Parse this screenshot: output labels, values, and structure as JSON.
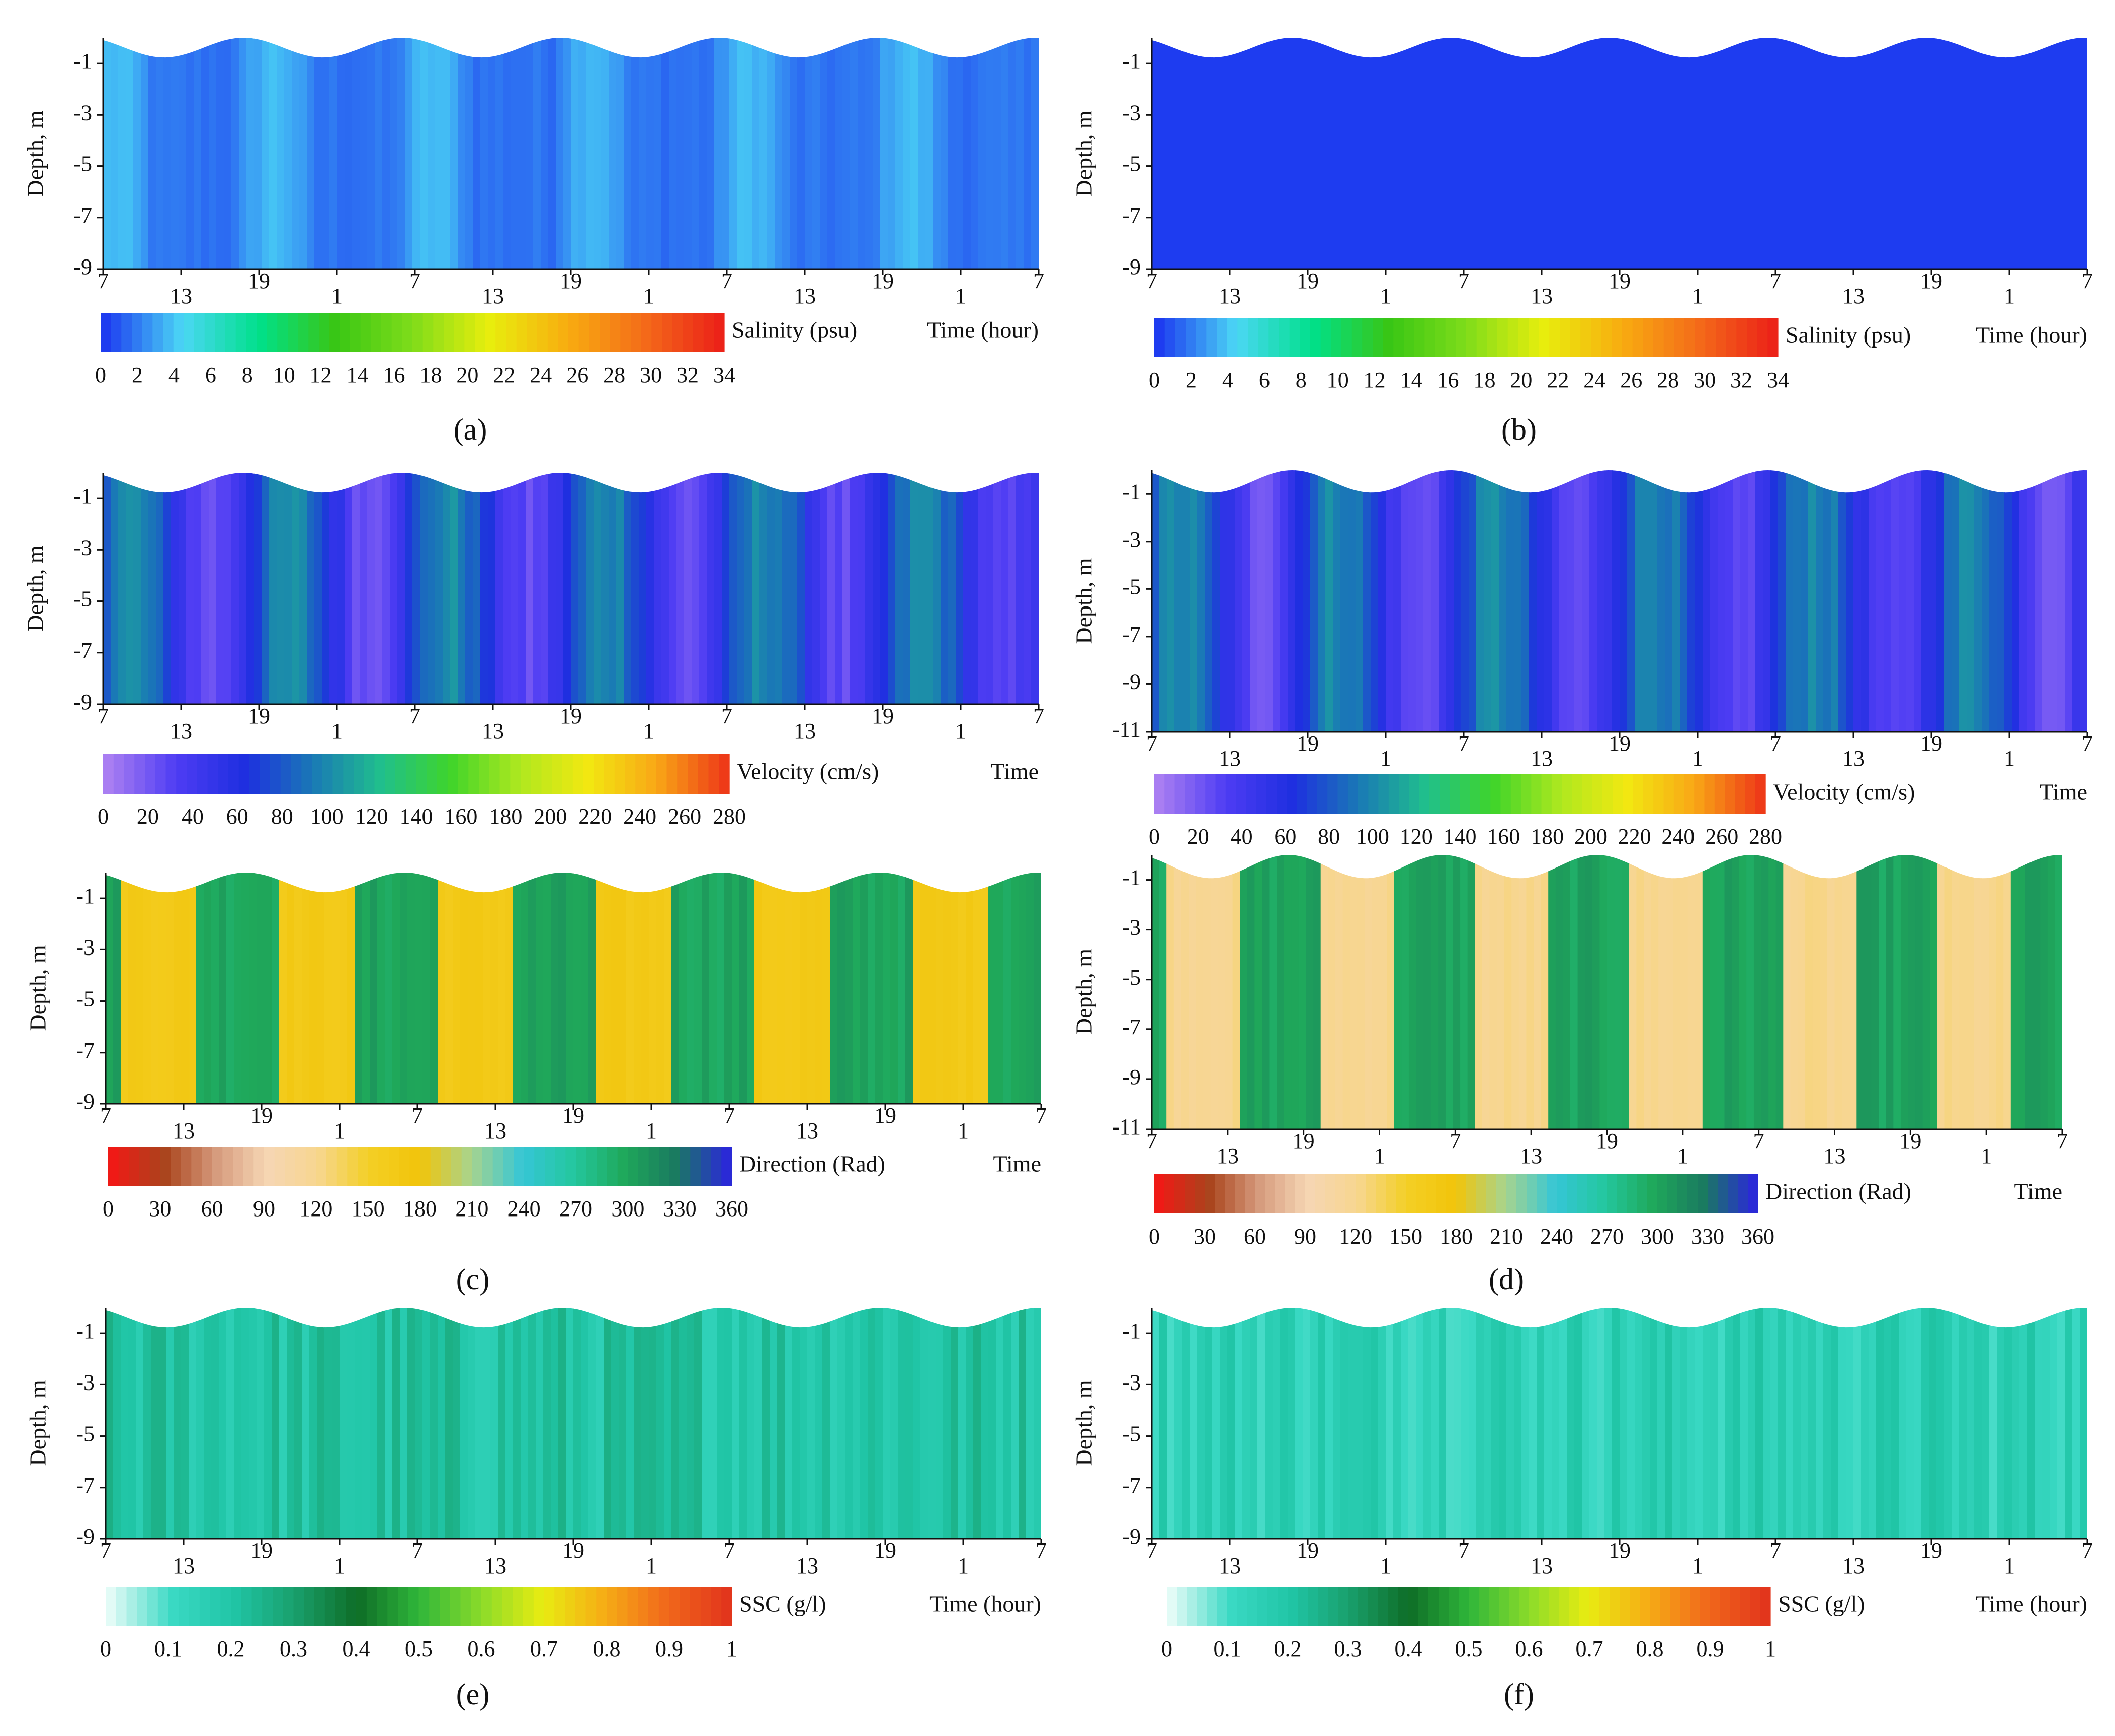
{
  "figure": {
    "depth_label": "Depth, m",
    "time_ticks": [
      "7",
      "13",
      "19",
      "1",
      "7",
      "13",
      "19",
      "1",
      "7",
      "13",
      "19",
      "1",
      "7"
    ]
  },
  "colorbars": {
    "salinity": {
      "label": "Salinity (psu)",
      "ticks": [
        "0",
        "2",
        "4",
        "6",
        "8",
        "10",
        "12",
        "14",
        "16",
        "18",
        "20",
        "22",
        "24",
        "26",
        "28",
        "30",
        "32",
        "34"
      ],
      "stops": [
        "#1e3cf0",
        "#4bd7f5",
        "#00e08a",
        "#39c614",
        "#7fdc1a",
        "#e8ee0d",
        "#f8ae10",
        "#f46d19",
        "#ec2318"
      ]
    },
    "velocity": {
      "label": "Velocity (cm/s)",
      "ticks": [
        "0",
        "20",
        "40",
        "60",
        "80",
        "100",
        "120",
        "140",
        "160",
        "180",
        "200",
        "220",
        "240",
        "260",
        "280"
      ],
      "stops": [
        "#a97ef2",
        "#4d3cf3",
        "#1e2fe0",
        "#1a7ab5",
        "#20c08c",
        "#3fd42a",
        "#aee81f",
        "#f2e811",
        "#f9a816",
        "#ee3b18"
      ]
    },
    "direction": {
      "label": "Direction (Rad)",
      "ticks": [
        "0",
        "30",
        "60",
        "90",
        "120",
        "150",
        "180",
        "210",
        "240",
        "270",
        "300",
        "330",
        "360"
      ],
      "stops": [
        "#ef1a16",
        "#a9441c",
        "#d59a7c",
        "#f6d6b4",
        "#f7d68f",
        "#f3cf25",
        "#f2c40a",
        "#a8d48e",
        "#35c6d6",
        "#24c79f",
        "#1fa85a",
        "#1a7a60",
        "#2a2ad6"
      ]
    },
    "ssc": {
      "label": "SSC (g/l)",
      "ticks": [
        "0",
        "0.1",
        "0.2",
        "0.3",
        "0.4",
        "0.5",
        "0.6",
        "0.7",
        "0.8",
        "0.9",
        "1"
      ],
      "stops": [
        "#e2fbf6",
        "#3ad9c4",
        "#20c5a6",
        "#199f6b",
        "#0e6d27",
        "#2fb63a",
        "#89db2a",
        "#e8ec12",
        "#f6ad15",
        "#f16a1b",
        "#e2361c"
      ]
    }
  },
  "chart_data": [
    {
      "panel": "a",
      "caption": "(a)",
      "type": "heatmap",
      "variable": "salinity",
      "colorbar_label": "Salinity (psu)",
      "xlabel": "Time (hour)",
      "ylabel": "Depth, m",
      "yticks": [
        "-1",
        "-3",
        "-5",
        "-7",
        "-9"
      ],
      "ylim": [
        -9,
        0
      ],
      "xticks": [
        "7",
        "13",
        "19",
        "1",
        "7",
        "13",
        "19",
        "1",
        "7",
        "13",
        "19",
        "1",
        "7"
      ],
      "value_range": [
        0,
        34
      ],
      "typical_value": 1.5
    },
    {
      "panel": "b",
      "caption": "(b)",
      "type": "heatmap",
      "variable": "salinity",
      "colorbar_label": "Salinity (psu)",
      "xlabel": "Time (hour)",
      "ylabel": "Depth, m",
      "yticks": [
        "-1",
        "-3",
        "-5",
        "-7",
        "-9"
      ],
      "ylim": [
        -9,
        0
      ],
      "xticks": [
        "7",
        "13",
        "19",
        "1",
        "7",
        "13",
        "19",
        "1",
        "7",
        "13",
        "19",
        "1",
        "7"
      ],
      "value_range": [
        0,
        34
      ],
      "typical_value": 0
    },
    {
      "panel": "c-velocity",
      "caption": "",
      "type": "heatmap",
      "variable": "velocity",
      "colorbar_label": "Velocity (cm/s)",
      "xlabel": "Time",
      "ylabel": "Depth, m",
      "yticks": [
        "-1",
        "-3",
        "-5",
        "-7",
        "-9"
      ],
      "ylim": [
        -9,
        0
      ],
      "xticks": [
        "7",
        "13",
        "19",
        "1",
        "7",
        "13",
        "19",
        "1",
        "7",
        "13",
        "19",
        "1",
        "7"
      ],
      "value_range": [
        0,
        280
      ],
      "typical_value": 60
    },
    {
      "panel": "d-velocity",
      "caption": "",
      "type": "heatmap",
      "variable": "velocity",
      "colorbar_label": "Velocity (cm/s)",
      "xlabel": "Time",
      "ylabel": "Depth, m",
      "yticks": [
        "-1",
        "-3",
        "-5",
        "-7",
        "-9",
        "-11"
      ],
      "ylim": [
        -11,
        0
      ],
      "xticks": [
        "7",
        "13",
        "19",
        "1",
        "7",
        "13",
        "19",
        "1",
        "7",
        "13",
        "19",
        "1",
        "7"
      ],
      "value_range": [
        0,
        280
      ],
      "typical_value": 60
    },
    {
      "panel": "c",
      "caption": "(c)",
      "type": "heatmap",
      "variable": "direction",
      "colorbar_label": "Direction (Rad)",
      "xlabel": "Time",
      "ylabel": "Depth, m",
      "yticks": [
        "-1",
        "-3",
        "-5",
        "-7",
        "-9"
      ],
      "ylim": [
        -9,
        0
      ],
      "xticks": [
        "7",
        "13",
        "19",
        "1",
        "7",
        "13",
        "19",
        "1",
        "7",
        "13",
        "19",
        "1",
        "7"
      ],
      "value_range": [
        0,
        360
      ],
      "typical_value": 165
    },
    {
      "panel": "d",
      "caption": "(d)",
      "type": "heatmap",
      "variable": "direction",
      "colorbar_label": "Direction (Rad)",
      "xlabel": "Time",
      "ylabel": "Depth, m",
      "yticks": [
        "-1",
        "-3",
        "-5",
        "-7",
        "-9",
        "-11"
      ],
      "ylim": [
        -11,
        0
      ],
      "xticks": [
        "7",
        "13",
        "19",
        "1",
        "7",
        "13",
        "19",
        "1",
        "7",
        "13",
        "19",
        "1",
        "7"
      ],
      "value_range": [
        0,
        360
      ],
      "typical_value": 120
    },
    {
      "panel": "e",
      "caption": "(e)",
      "type": "heatmap",
      "variable": "ssc",
      "colorbar_label": "SSC (g/l)",
      "xlabel": "Time (hour)",
      "ylabel": "Depth, m",
      "yticks": [
        "-1",
        "-3",
        "-5",
        "-7",
        "-9"
      ],
      "ylim": [
        -9,
        0
      ],
      "xticks": [
        "7",
        "13",
        "19",
        "1",
        "7",
        "13",
        "19",
        "1",
        "7",
        "13",
        "19",
        "1",
        "7"
      ],
      "value_range": [
        0,
        1
      ],
      "typical_value": 0.2
    },
    {
      "panel": "f",
      "caption": "(f)",
      "type": "heatmap",
      "variable": "ssc",
      "colorbar_label": "SSC (g/l)",
      "xlabel": "Time (hour)",
      "ylabel": "Depth, m",
      "yticks": [
        "-1",
        "-3",
        "-5",
        "-7",
        "-9"
      ],
      "ylim": [
        -9,
        0
      ],
      "xticks": [
        "7",
        "13",
        "19",
        "1",
        "7",
        "13",
        "19",
        "1",
        "7",
        "13",
        "19",
        "1",
        "7"
      ],
      "value_range": [
        0,
        1
      ],
      "typical_value": 0.15
    }
  ]
}
